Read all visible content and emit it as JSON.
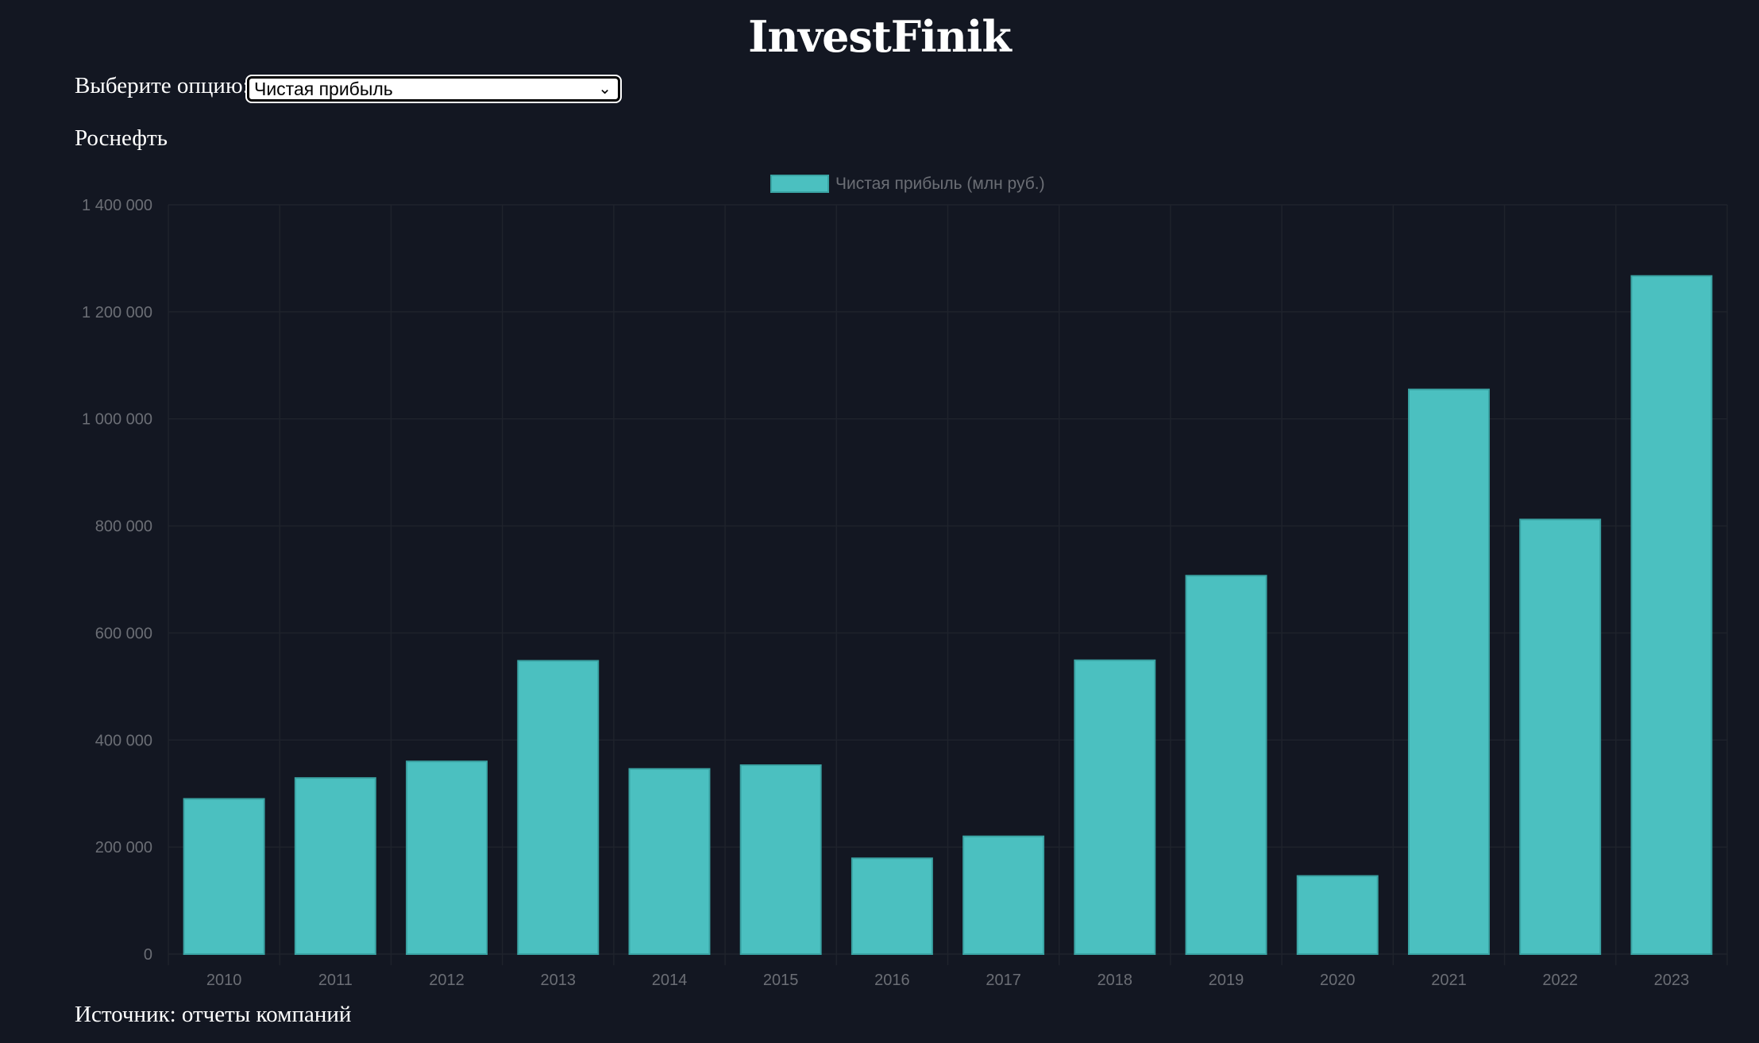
{
  "header": {
    "title": "InvestFinik"
  },
  "controls": {
    "label": "Выберите опцию:",
    "selected": "Чистая прибыль"
  },
  "company": "Роснефть",
  "footer": {
    "source": "Источник: отчеты компаний"
  },
  "chart_data": {
    "type": "bar",
    "categories": [
      "2010",
      "2011",
      "2012",
      "2013",
      "2014",
      "2015",
      "2016",
      "2017",
      "2018",
      "2019",
      "2020",
      "2021",
      "2022",
      "2023"
    ],
    "series": [
      {
        "name": "Чистая прибыль (млн руб.)",
        "values": [
          290000,
          329000,
          360000,
          548000,
          346000,
          353000,
          179000,
          220000,
          549000,
          707000,
          146000,
          1055000,
          812000,
          1267000
        ],
        "color": "#4bc0c0"
      }
    ],
    "ylim": [
      0,
      1400000
    ],
    "yticks": [
      "0",
      "200 000",
      "400 000",
      "600 000",
      "800 000",
      "1 000 000",
      "1 200 000",
      "1 400 000"
    ],
    "grid": true,
    "legend": "top-center"
  }
}
